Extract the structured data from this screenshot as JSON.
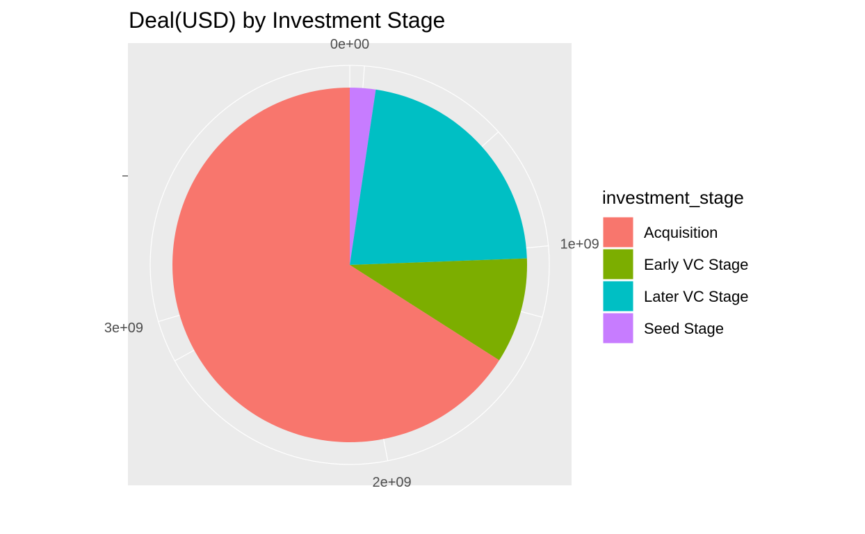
{
  "chart_data": {
    "type": "pie",
    "title": "Deal(USD) by Investment Stage",
    "legend_title": "investment_stage",
    "legend_position": "right",
    "axis_ticks": [
      {
        "label": "0e+00",
        "value": 0
      },
      {
        "label": "1e+09",
        "value": 1000000000
      },
      {
        "label": "2e+09",
        "value": 2000000000
      },
      {
        "label": "3e+09",
        "value": 3000000000
      }
    ],
    "stack_order": [
      "Seed Stage",
      "Later VC Stage",
      "Early VC Stage",
      "Acquisition"
    ],
    "slices": [
      {
        "label": "Acquisition",
        "value": 2810000000,
        "color": "#F8766D"
      },
      {
        "label": "Early VC Stage",
        "value": 410000000,
        "color": "#7CAE00"
      },
      {
        "label": "Later VC Stage",
        "value": 940000000,
        "color": "#00BFC4"
      },
      {
        "label": "Seed Stage",
        "value": 100000000,
        "color": "#C77CFF"
      }
    ],
    "panel_background": "#EBEBEB",
    "grid_color": "#FFFFFF",
    "grid": true
  }
}
